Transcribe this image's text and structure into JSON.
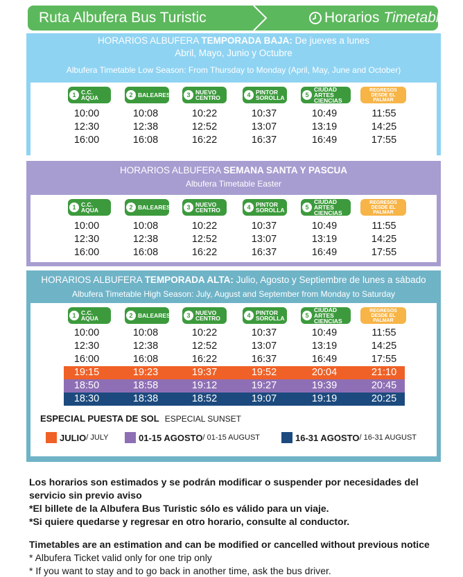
{
  "header": {
    "title": "Ruta Albufera Bus Turistic",
    "schedule_es": "Horarios",
    "schedule_en": "Timetable"
  },
  "stops": [
    {
      "num": "1",
      "label": "C.C. AQUA"
    },
    {
      "num": "2",
      "label": "BALEARES"
    },
    {
      "num": "3",
      "label": "NUEVO CENTRO"
    },
    {
      "num": "4",
      "label": "PINTOR SOROLLA"
    },
    {
      "num": "5",
      "label": "CIUDAD ARTES CIENCIAS"
    },
    {
      "num": "",
      "label": "REGRESOS DESDE EL PALMAR"
    }
  ],
  "low_season": {
    "title_prefix": "HORARIOS ALBUFERA ",
    "title_bold": "TEMPORADA BAJA:",
    "title_suffix": " De jueves a lunes",
    "title_line2": "Abril, Mayo, Junio y Octubre",
    "subtitle": "Albufera Timetable Low Season: From Thursday  to Monday  (April, May, June and October)",
    "times": [
      [
        "10:00",
        "10:08",
        "10:22",
        "10:37",
        "10:49",
        "11:55"
      ],
      [
        "12:30",
        "12:38",
        "12:52",
        "13:07",
        "13:19",
        "14:25"
      ],
      [
        "16:00",
        "16:08",
        "16:22",
        "16:37",
        "16:49",
        "17:55"
      ]
    ]
  },
  "easter": {
    "title_prefix": "HORARIOS ALBUFERA ",
    "title_bold": "SEMANA SANTA Y PASCUA",
    "subtitle": "Albufera Timetable Easter",
    "times": [
      [
        "10:00",
        "10:08",
        "10:22",
        "10:37",
        "10:49",
        "11:55"
      ],
      [
        "12:30",
        "12:38",
        "12:52",
        "13:07",
        "13:19",
        "14:25"
      ],
      [
        "16:00",
        "16:08",
        "16:22",
        "16:37",
        "16:49",
        "17:55"
      ]
    ]
  },
  "high_season": {
    "title_prefix": "HORARIOS ALBUFERA ",
    "title_bold": "TEMPORADA ALTA:",
    "title_suffix": " Julio, Agosto y Septiembre de lunes a sábado",
    "subtitle": "Albufera Timetable High Season: July, August and September from Monday to Saturday",
    "times": [
      [
        "10:00",
        "10:08",
        "10:22",
        "10:37",
        "10:49",
        "11:55"
      ],
      [
        "12:30",
        "12:38",
        "12:52",
        "13:07",
        "13:19",
        "14:25"
      ],
      [
        "16:00",
        "16:08",
        "16:22",
        "16:37",
        "16:49",
        "17:55"
      ]
    ],
    "sunset": {
      "july": [
        "19:15",
        "19:23",
        "19:37",
        "19:52",
        "20:04",
        "21:10"
      ],
      "aug_early": [
        "18:50",
        "18:58",
        "19:12",
        "19:27",
        "19:39",
        "20:45"
      ],
      "aug_late": [
        "18:30",
        "18:38",
        "18:52",
        "19:07",
        "19:19",
        "20:25"
      ]
    },
    "special_es": "ESPECIAL PUESTA DE SOL",
    "special_en": "ESPECIAL SUNSET",
    "legend": [
      {
        "es": "JULIO",
        "en": " / JULY",
        "color": "#ef6127"
      },
      {
        "es": "01-15 AGOSTO",
        "en": "/ 01-15 AUGUST",
        "color": "#8e6fb5"
      },
      {
        "es": "16-31 AGOSTO",
        "en": " / 16-31 AUGUST",
        "color": "#1c4a7e"
      }
    ]
  },
  "notes": {
    "es": [
      "Los horarios son estimados y se podrán modificar o suspender por necesidades del servicio sin previo aviso",
      "*El billete de la Albufera Bus Turistic sólo es válido para un viaje.",
      "*Si quiere quedarse y regresar en otro horario, consulte al conductor."
    ],
    "en": [
      "Timetables are an estimation and can be modified or cancelled without previous notice",
      "* Albufera Ticket valid only for one trip only",
      "* If you want to stay and to go back in another time, ask the bus driver."
    ]
  },
  "colors": {
    "header_green": "#5cb85c",
    "stop_green": "#3c9a3c",
    "return_orange": "#f7b447",
    "low_season_blue": "#8fd3f2",
    "easter_purple": "#a79dd0",
    "high_season_teal": "#6fb3c7"
  }
}
